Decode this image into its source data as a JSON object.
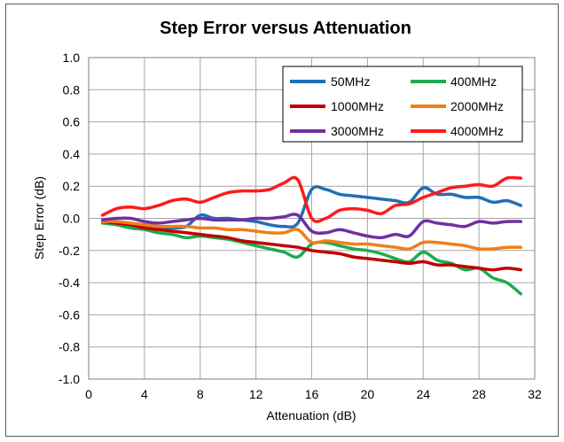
{
  "chart_data": {
    "type": "line",
    "title": "Step Error versus Attenuation",
    "xlabel": "Attenuation (dB)",
    "ylabel": "Step Error (dB)",
    "xlim": [
      0,
      32
    ],
    "ylim": [
      -1.0,
      1.0
    ],
    "xticks": [
      0,
      4,
      8,
      12,
      16,
      20,
      24,
      28,
      32
    ],
    "yticks": [
      -1.0,
      -0.8,
      -0.6,
      -0.4,
      -0.2,
      0.0,
      0.2,
      0.4,
      0.6,
      0.8,
      1.0
    ],
    "xtick_labels": [
      "0",
      "4",
      "8",
      "12",
      "16",
      "20",
      "24",
      "28",
      "32"
    ],
    "ytick_labels": [
      "-1.0",
      "-0.8",
      "-0.6",
      "-0.4",
      "-0.2",
      "0.0",
      "0.2",
      "0.4",
      "0.6",
      "0.8",
      "1.0"
    ],
    "grid": true,
    "legend_position": "top-right",
    "x": [
      1,
      2,
      3,
      4,
      5,
      6,
      7,
      8,
      9,
      10,
      11,
      12,
      13,
      14,
      15,
      16,
      17,
      18,
      19,
      20,
      21,
      22,
      23,
      24,
      25,
      26,
      27,
      28,
      29,
      30,
      31
    ],
    "series": [
      {
        "name": "50MHz",
        "color": "#1f6fb5",
        "values": [
          -0.02,
          -0.03,
          -0.05,
          -0.05,
          -0.06,
          -0.06,
          -0.05,
          0.02,
          0.0,
          0.0,
          -0.01,
          -0.02,
          -0.04,
          -0.05,
          -0.03,
          0.18,
          0.18,
          0.15,
          0.14,
          0.13,
          0.12,
          0.11,
          0.1,
          0.19,
          0.15,
          0.15,
          0.13,
          0.13,
          0.1,
          0.11,
          0.08
        ]
      },
      {
        "name": "400MHz",
        "color": "#1faa4f",
        "values": [
          -0.03,
          -0.04,
          -0.06,
          -0.07,
          -0.09,
          -0.1,
          -0.12,
          -0.11,
          -0.12,
          -0.13,
          -0.15,
          -0.17,
          -0.19,
          -0.21,
          -0.24,
          -0.16,
          -0.15,
          -0.17,
          -0.19,
          -0.2,
          -0.22,
          -0.25,
          -0.27,
          -0.21,
          -0.26,
          -0.28,
          -0.32,
          -0.31,
          -0.37,
          -0.4,
          -0.47
        ]
      },
      {
        "name": "1000MHz",
        "color": "#c00000",
        "values": [
          -0.02,
          -0.03,
          -0.04,
          -0.06,
          -0.07,
          -0.08,
          -0.09,
          -0.1,
          -0.11,
          -0.12,
          -0.14,
          -0.15,
          -0.16,
          -0.17,
          -0.18,
          -0.2,
          -0.21,
          -0.22,
          -0.24,
          -0.25,
          -0.26,
          -0.27,
          -0.28,
          -0.27,
          -0.29,
          -0.29,
          -0.3,
          -0.31,
          -0.32,
          -0.31,
          -0.32
        ]
      },
      {
        "name": "2000MHz",
        "color": "#f07f17",
        "values": [
          -0.02,
          -0.02,
          -0.03,
          -0.04,
          -0.05,
          -0.05,
          -0.05,
          -0.06,
          -0.06,
          -0.07,
          -0.07,
          -0.08,
          -0.09,
          -0.09,
          -0.07,
          -0.15,
          -0.14,
          -0.15,
          -0.16,
          -0.16,
          -0.17,
          -0.18,
          -0.19,
          -0.15,
          -0.15,
          -0.16,
          -0.17,
          -0.19,
          -0.19,
          -0.18,
          -0.18
        ]
      },
      {
        "name": "3000MHz",
        "color": "#7030a0",
        "values": [
          -0.01,
          0.0,
          0.0,
          -0.02,
          -0.03,
          -0.02,
          -0.01,
          0.0,
          -0.01,
          -0.01,
          -0.01,
          0.0,
          0.0,
          0.01,
          0.02,
          -0.08,
          -0.09,
          -0.07,
          -0.09,
          -0.11,
          -0.12,
          -0.1,
          -0.11,
          -0.02,
          -0.03,
          -0.04,
          -0.05,
          -0.02,
          -0.03,
          -0.02,
          -0.02
        ]
      },
      {
        "name": "4000MHz",
        "color": "#ff1a1a",
        "values": [
          0.02,
          0.06,
          0.07,
          0.06,
          0.08,
          0.11,
          0.12,
          0.1,
          0.13,
          0.16,
          0.17,
          0.17,
          0.18,
          0.22,
          0.24,
          0.0,
          0.0,
          0.05,
          0.06,
          0.05,
          0.03,
          0.08,
          0.09,
          0.13,
          0.16,
          0.19,
          0.2,
          0.21,
          0.2,
          0.25,
          0.25
        ]
      }
    ]
  }
}
